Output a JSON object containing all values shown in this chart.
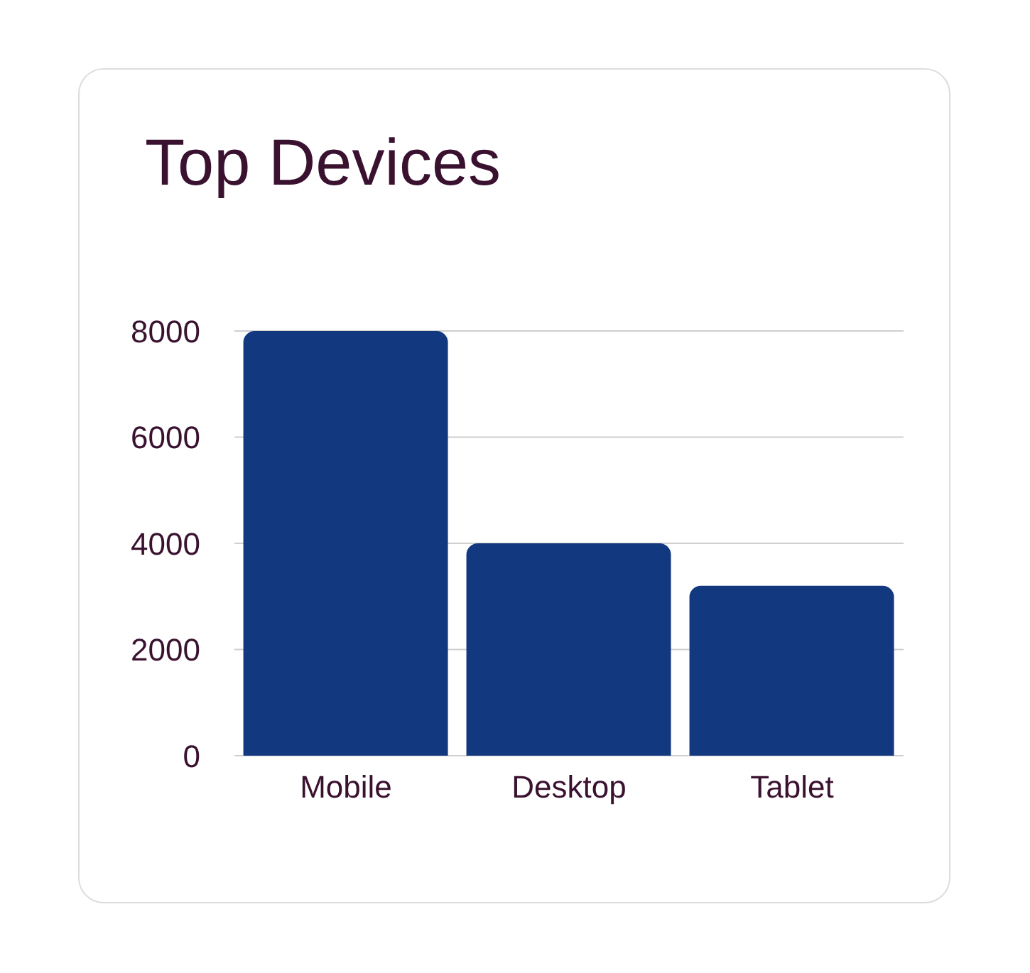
{
  "chart_data": {
    "type": "bar",
    "title": "Top Devices",
    "categories": [
      "Mobile",
      "Desktop",
      "Tablet"
    ],
    "values": [
      8000,
      4000,
      3200
    ],
    "color": "#12387f",
    "ylim": [
      0,
      8000
    ],
    "yticks": [
      0,
      2000,
      4000,
      6000,
      8000
    ],
    "grid": "y"
  }
}
